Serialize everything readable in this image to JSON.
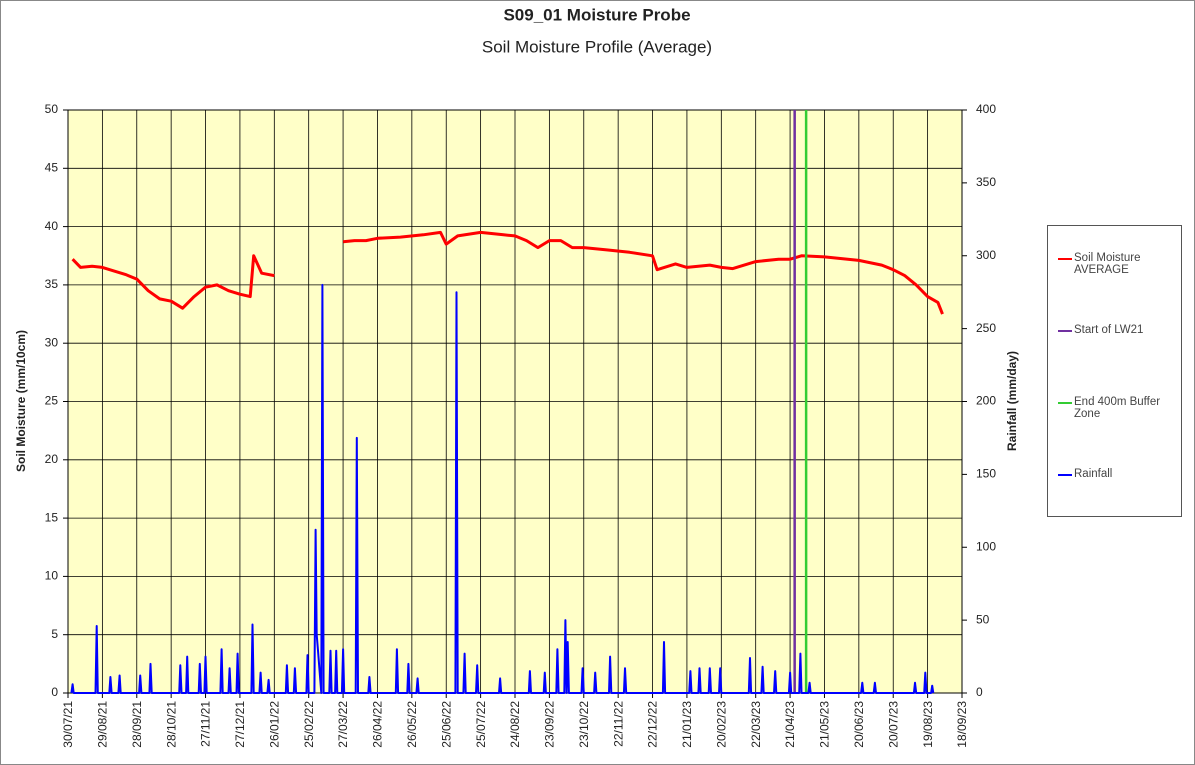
{
  "chart_data": {
    "type": "line",
    "title": "S09_01 Moisture Probe",
    "subtitle": "Soil Moisture Profile (Average)",
    "y_label": "Soil Moisture (mm/10cm)",
    "y2_label": "Rainfall (mm/day)",
    "xlim": [
      "30/07/21",
      "18/09/23"
    ],
    "xticks": [
      "30/07/21",
      "29/08/21",
      "28/09/21",
      "28/10/21",
      "27/11/21",
      "27/12/21",
      "26/01/22",
      "25/02/22",
      "27/03/22",
      "26/04/22",
      "26/05/22",
      "25/06/22",
      "25/07/22",
      "24/08/22",
      "23/09/22",
      "23/10/22",
      "22/11/22",
      "22/12/22",
      "21/01/23",
      "20/02/23",
      "22/03/23",
      "21/04/23",
      "21/05/23",
      "20/06/23",
      "20/07/23",
      "19/08/23",
      "18/09/23"
    ],
    "ylim": [
      0,
      50
    ],
    "yticks": [
      0,
      5,
      10,
      15,
      20,
      25,
      30,
      35,
      40,
      45,
      50
    ],
    "y2lim": [
      0,
      400
    ],
    "y2ticks": [
      0,
      50,
      100,
      150,
      200,
      250,
      300,
      350,
      400
    ],
    "grid": true,
    "legend": "right",
    "plot_background": "#ffffc8",
    "series": [
      {
        "name": "Soil Moisture AVERAGE",
        "color": "#ff0000",
        "x": [
          "03/08/21",
          "10/08/21",
          "20/08/21",
          "29/08/21",
          "08/09/21",
          "18/09/21",
          "28/09/21",
          "08/10/21",
          "18/10/21",
          "28/10/21",
          "07/11/21",
          "17/11/21",
          "27/11/21",
          "07/12/21",
          "17/12/21",
          "27/12/21",
          "05/01/22",
          "08/01/22",
          "15/01/22",
          "26/01/22",
          "26/02/22",
          "27/03/22",
          "06/04/22",
          "16/04/22",
          "26/04/22",
          "16/05/22",
          "05/06/22",
          "20/06/22",
          "25/06/22",
          "05/07/22",
          "25/07/22",
          "14/08/22",
          "24/08/22",
          "03/09/22",
          "13/09/22",
          "23/09/22",
          "03/10/22",
          "13/10/22",
          "23/10/22",
          "12/11/22",
          "02/12/22",
          "22/12/22",
          "26/12/22",
          "11/01/23",
          "21/01/23",
          "10/02/23",
          "20/02/23",
          "02/03/23",
          "22/03/23",
          "11/04/23",
          "21/04/23",
          "01/05/23",
          "21/05/23",
          "20/06/23",
          "10/07/23",
          "20/07/23",
          "30/07/23",
          "09/08/23",
          "19/08/23",
          "28/08/23",
          "01/09/23"
        ],
        "values": [
          37.2,
          36.5,
          36.6,
          36.5,
          36.2,
          35.9,
          35.5,
          34.5,
          33.8,
          33.6,
          33.0,
          34.0,
          34.8,
          35.0,
          34.5,
          34.2,
          34.0,
          37.5,
          36.0,
          35.8,
          null,
          38.7,
          38.8,
          38.8,
          39.0,
          39.1,
          39.3,
          39.5,
          38.5,
          39.2,
          39.5,
          39.3,
          39.2,
          38.8,
          38.2,
          38.8,
          38.8,
          38.2,
          38.2,
          38.0,
          37.8,
          37.5,
          36.3,
          36.8,
          36.5,
          36.7,
          36.5,
          36.4,
          37.0,
          37.2,
          37.2,
          37.5,
          37.4,
          37.1,
          36.7,
          36.3,
          35.8,
          35.0,
          34.0,
          33.5,
          32.5
        ]
      },
      {
        "name": "Start of LW21",
        "color": "#7030a0",
        "type": "vline",
        "x": "25/04/23"
      },
      {
        "name": "End 400m Buffer Zone",
        "color": "#33cc33",
        "type": "vline",
        "x": "05/05/23"
      },
      {
        "name": "Rainfall",
        "color": "#0000ff",
        "axis": "y2",
        "x": [
          "02/08/21",
          "03/08/21",
          "04/08/21",
          "23/08/21",
          "24/08/21",
          "25/08/21",
          "04/09/21",
          "05/09/21",
          "06/09/21",
          "12/09/21",
          "13/09/21",
          "14/09/21",
          "30/09/21",
          "01/10/21",
          "02/10/21",
          "09/10/21",
          "10/10/21",
          "11/10/21",
          "04/11/21",
          "05/11/21",
          "06/11/21",
          "10/11/21",
          "11/11/21",
          "12/11/21",
          "21/11/21",
          "22/11/21",
          "23/11/21",
          "26/11/21",
          "27/11/21",
          "28/11/21",
          "10/12/21",
          "11/12/21",
          "12/12/21",
          "17/12/21",
          "18/12/21",
          "19/12/21",
          "24/12/21",
          "25/12/21",
          "26/12/21",
          "06/01/22",
          "07/01/22",
          "08/01/22",
          "13/01/22",
          "14/01/22",
          "15/01/22",
          "20/01/22",
          "21/01/22",
          "22/01/22",
          "05/02/22",
          "06/02/22",
          "07/02/22",
          "12/02/22",
          "13/02/22",
          "14/02/22",
          "23/02/22",
          "24/02/22",
          "25/02/22",
          "02/03/22",
          "03/03/22",
          "04/03/22",
          "05/03/22",
          "08/03/22",
          "09/03/22",
          "10/03/22",
          "15/03/22",
          "16/03/22",
          "17/03/22",
          "20/03/22",
          "21/03/22",
          "22/03/22",
          "26/03/22",
          "27/03/22",
          "28/03/22",
          "07/04/22",
          "08/04/22",
          "09/04/22",
          "18/04/22",
          "19/04/22",
          "20/04/22",
          "12/05/22",
          "13/05/22",
          "14/05/22",
          "22/05/22",
          "23/05/22",
          "24/05/22",
          "30/05/22",
          "31/05/22",
          "01/06/22",
          "03/07/22",
          "04/07/22",
          "05/07/22",
          "10/07/22",
          "11/07/22",
          "12/07/22",
          "21/07/22",
          "22/07/22",
          "23/07/22",
          "10/08/22",
          "11/08/22",
          "12/08/22",
          "05/09/22",
          "06/09/22",
          "07/09/22",
          "18/09/22",
          "19/09/22",
          "20/09/22",
          "29/09/22",
          "30/09/22",
          "01/10/22",
          "06/10/22",
          "07/10/22",
          "08/10/22",
          "09/10/22",
          "10/10/22",
          "21/10/22",
          "22/10/22",
          "23/10/22",
          "01/11/22",
          "02/11/22",
          "03/11/22",
          "14/11/22",
          "15/11/22",
          "16/11/22",
          "27/11/22",
          "28/11/22",
          "29/11/22",
          "31/12/22",
          "01/01/23",
          "02/01/23",
          "23/01/23",
          "24/01/23",
          "25/01/23",
          "31/01/23",
          "01/02/23",
          "02/02/23",
          "09/02/23",
          "10/02/23",
          "11/02/23",
          "18/02/23",
          "19/02/23",
          "20/02/23",
          "16/03/23",
          "17/03/23",
          "18/03/23",
          "27/03/23",
          "28/03/23",
          "29/03/23",
          "07/04/23",
          "08/04/23",
          "09/04/23",
          "20/04/23",
          "21/04/23",
          "22/04/23",
          "29/04/23",
          "30/04/23",
          "01/05/23",
          "07/05/23",
          "08/05/23",
          "09/05/23",
          "22/06/23",
          "23/06/23",
          "24/06/23",
          "03/07/23",
          "04/07/23",
          "05/07/23",
          "07/08/23",
          "08/08/23",
          "09/08/23",
          "16/08/23",
          "17/08/23",
          "18/08/23",
          "22/08/23",
          "23/08/23",
          "24/08/23"
        ],
        "values": [
          0,
          6,
          0,
          0,
          46,
          0,
          0,
          11,
          0,
          0,
          12,
          0,
          0,
          12,
          0,
          0,
          20,
          0,
          0,
          19,
          0,
          0,
          25,
          0,
          0,
          20,
          0,
          0,
          25,
          0,
          0,
          30,
          0,
          0,
          17,
          0,
          0,
          27,
          0,
          0,
          47,
          0,
          0,
          14,
          0,
          0,
          9,
          0,
          0,
          19,
          0,
          0,
          17,
          0,
          0,
          26,
          0,
          0,
          112,
          40,
          30,
          0,
          280,
          0,
          0,
          29,
          0,
          0,
          29,
          0,
          0,
          30,
          0,
          0,
          175,
          0,
          0,
          11,
          0,
          0,
          30,
          0,
          0,
          20,
          0,
          0,
          10,
          0,
          0,
          275,
          0,
          0,
          27,
          0,
          0,
          19,
          0,
          0,
          10,
          0,
          0,
          15,
          0,
          0,
          14,
          0,
          0,
          30,
          0,
          0,
          50,
          0,
          35,
          0,
          0,
          17,
          0,
          0,
          14,
          0,
          0,
          25,
          0,
          0,
          17,
          0,
          0,
          35,
          0,
          0,
          15,
          0,
          0,
          17,
          0,
          0,
          17,
          0,
          0,
          17,
          0,
          0,
          24,
          0,
          0,
          18,
          0,
          0,
          15,
          0,
          0,
          14,
          0,
          0,
          27,
          0,
          0,
          7,
          0,
          0,
          7,
          0,
          0,
          7,
          0,
          0,
          7,
          0,
          0,
          14,
          0,
          0,
          5,
          0
        ]
      }
    ]
  }
}
